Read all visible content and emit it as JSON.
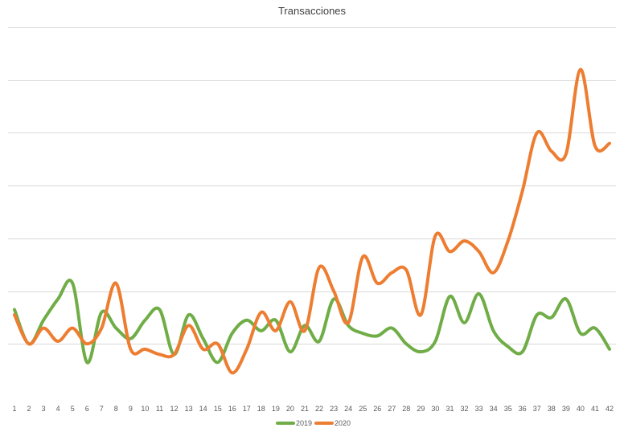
{
  "chart_data": {
    "type": "line",
    "title": "Transacciones",
    "xlabel": "",
    "ylabel": "",
    "categories": [
      "1",
      "2",
      "3",
      "4",
      "5",
      "6",
      "7",
      "8",
      "9",
      "10",
      "11",
      "12",
      "13",
      "14",
      "15",
      "16",
      "17",
      "18",
      "19",
      "20",
      "21",
      "22",
      "23",
      "24",
      "25",
      "26",
      "27",
      "28",
      "29",
      "30",
      "31",
      "32",
      "33",
      "34",
      "35",
      "36",
      "37",
      "38",
      "39",
      "40",
      "41",
      "42"
    ],
    "ylim": [
      -1,
      6
    ],
    "gridlines": [
      0,
      1,
      2,
      3,
      4,
      5,
      6
    ],
    "grid": true,
    "y_tick_labels_shown": false,
    "legend": "bottom",
    "series": [
      {
        "name": "2019",
        "color": "#70AD47",
        "values": [
          0.65,
          0.0,
          0.45,
          0.85,
          1.15,
          -0.35,
          0.6,
          0.3,
          0.1,
          0.45,
          0.65,
          -0.2,
          0.55,
          0.1,
          -0.35,
          0.2,
          0.45,
          0.25,
          0.45,
          -0.15,
          0.35,
          0.05,
          0.85,
          0.35,
          0.2,
          0.15,
          0.3,
          0.0,
          -0.15,
          0.05,
          0.9,
          0.4,
          0.95,
          0.25,
          -0.05,
          -0.15,
          0.55,
          0.5,
          0.85,
          0.2,
          0.3,
          -0.1
        ]
      },
      {
        "name": "2020",
        "color": "#ED7D31",
        "values": [
          0.55,
          0.0,
          0.3,
          0.05,
          0.3,
          0.0,
          0.3,
          1.15,
          -0.1,
          -0.1,
          -0.2,
          -0.2,
          0.35,
          -0.1,
          0.0,
          -0.55,
          -0.1,
          0.6,
          0.25,
          0.8,
          0.25,
          1.45,
          1.0,
          0.4,
          1.65,
          1.15,
          1.35,
          1.4,
          0.55,
          2.05,
          1.75,
          1.95,
          1.75,
          1.35,
          1.95,
          2.9,
          4.0,
          3.65,
          3.6,
          5.2,
          3.75,
          3.8
        ]
      }
    ]
  }
}
